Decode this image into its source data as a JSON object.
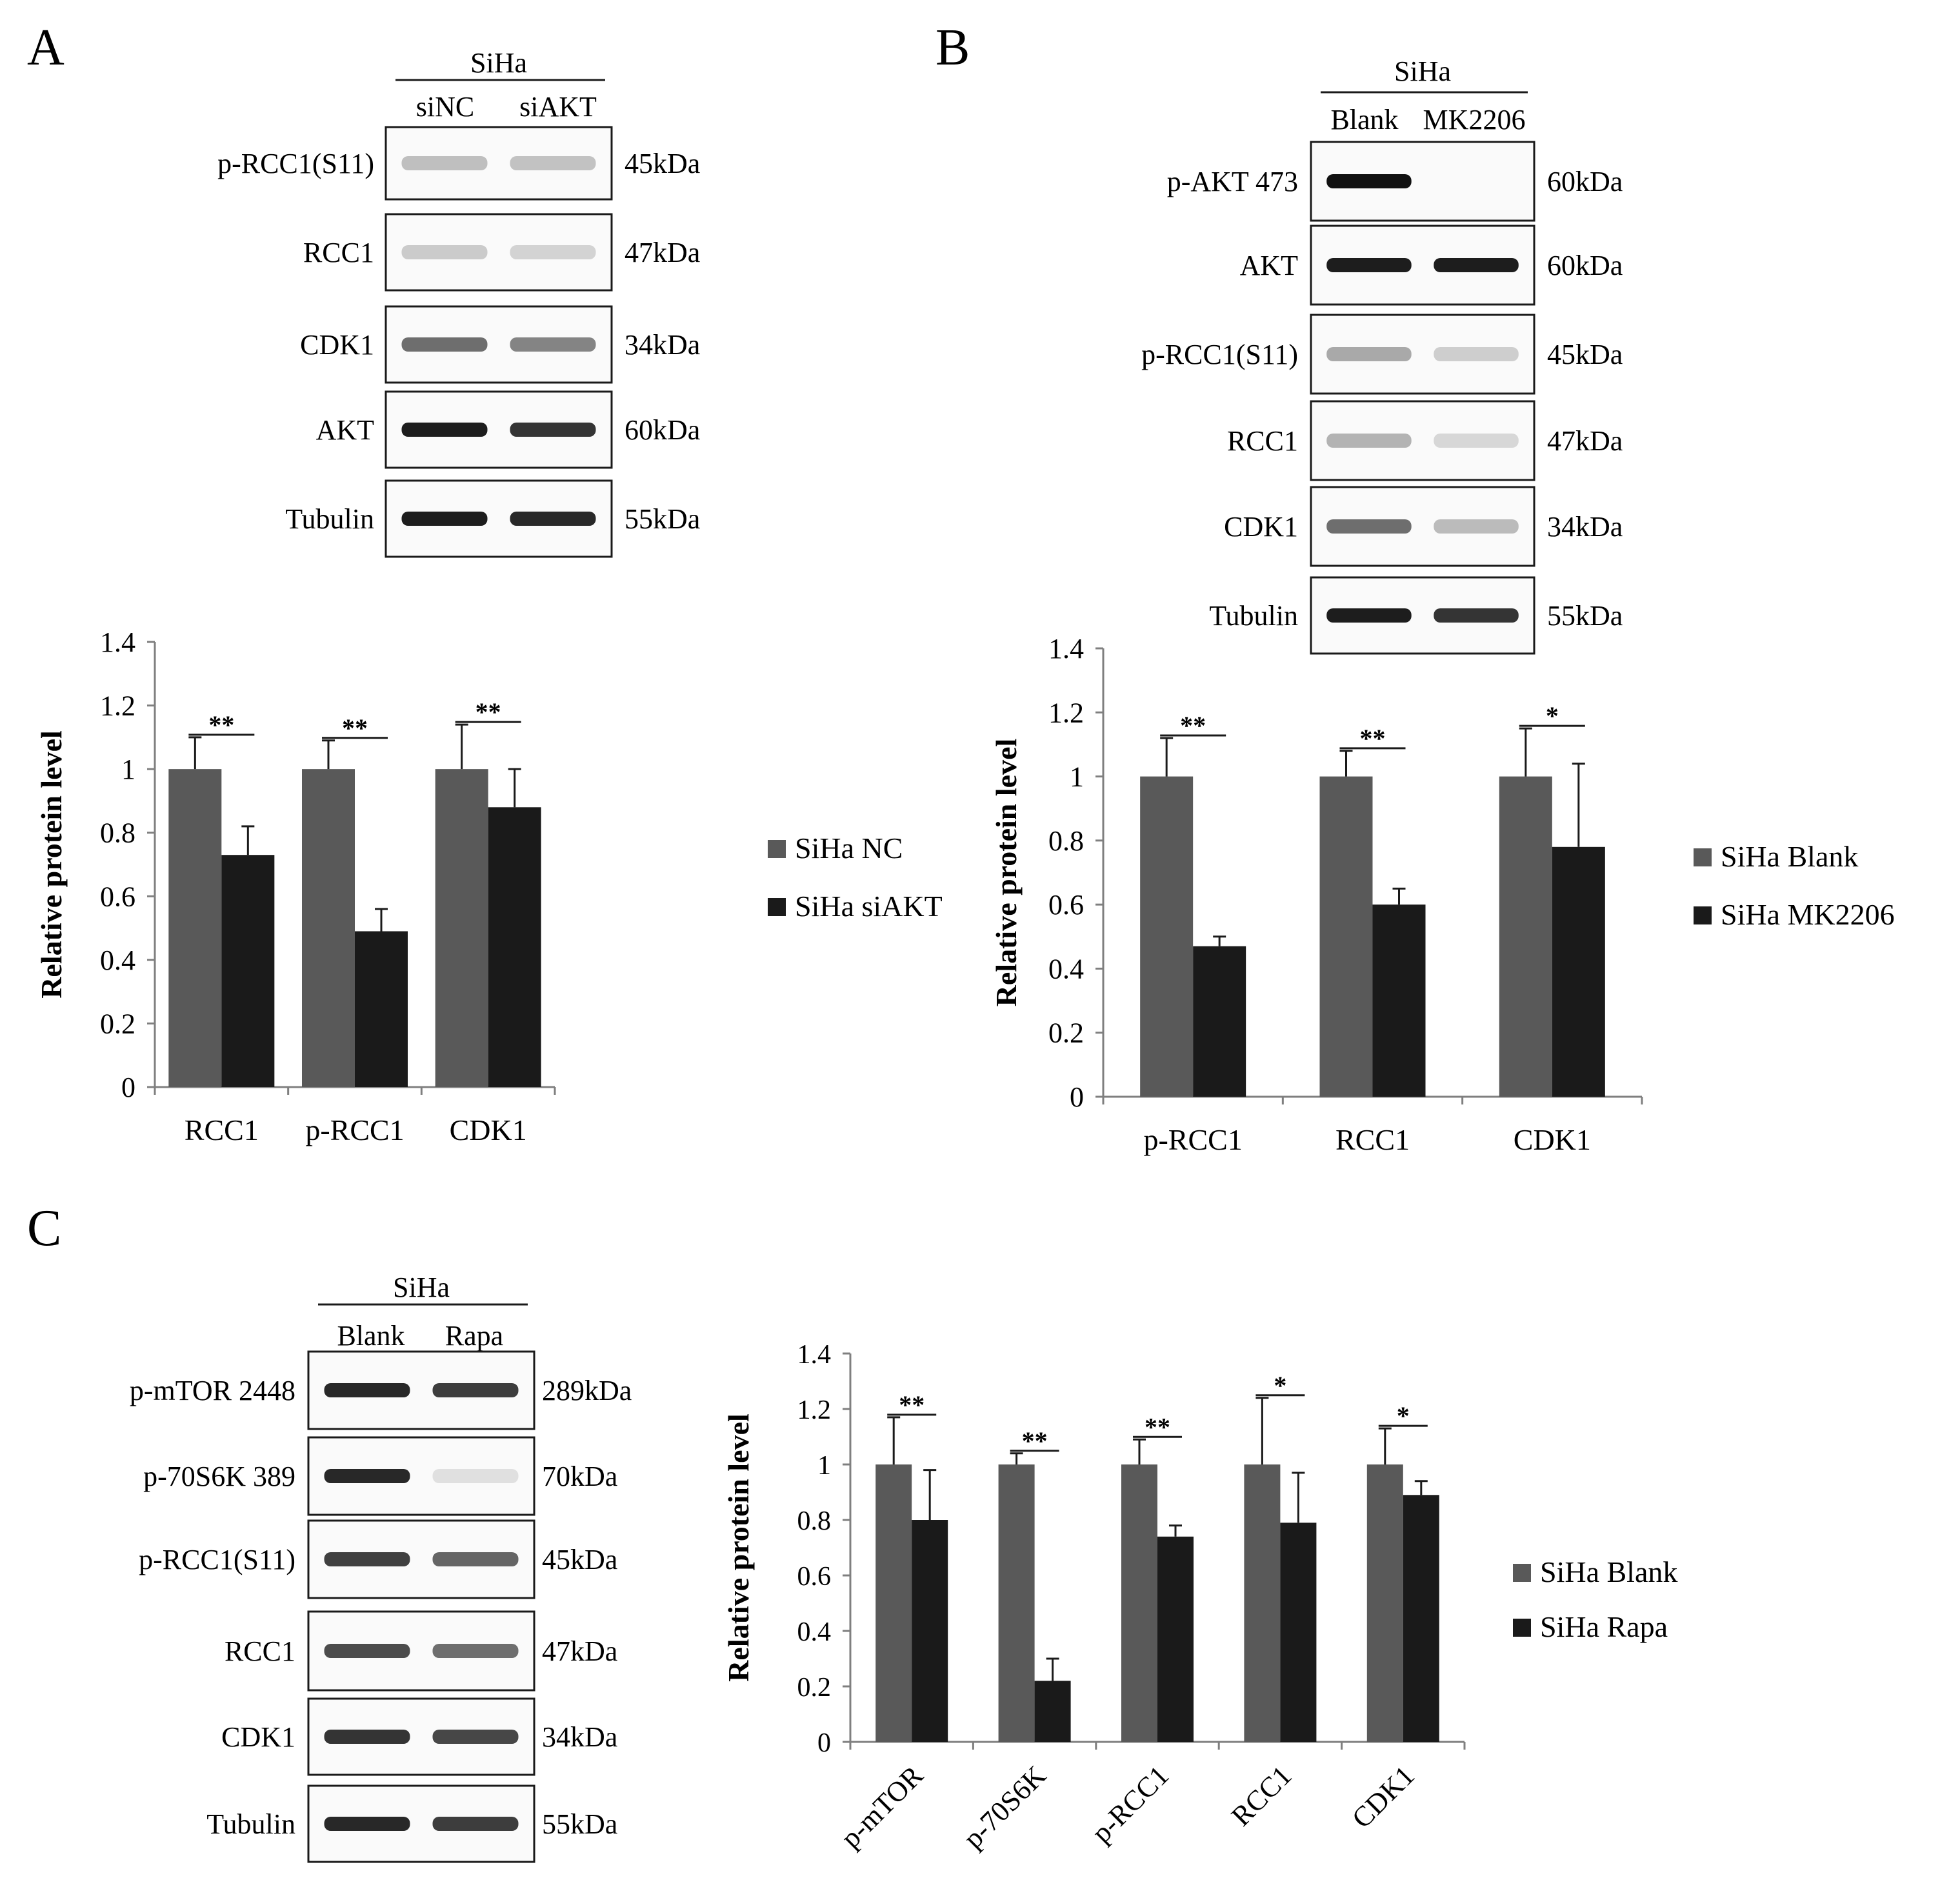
{
  "panels": {
    "A": {
      "letter": "A",
      "blot": {
        "cell_line": "SiHa",
        "lanes": [
          "siNC",
          "siAKT"
        ],
        "rows": [
          {
            "label": "p-RCC1(S11)",
            "kda": "45kDa"
          },
          {
            "label": "RCC1",
            "kda": "47kDa"
          },
          {
            "label": "CDK1",
            "kda": "34kDa"
          },
          {
            "label": "AKT",
            "kda": "60kDa"
          },
          {
            "label": "Tubulin",
            "kda": "55kDa"
          }
        ]
      }
    },
    "B": {
      "letter": "B",
      "blot": {
        "cell_line": "SiHa",
        "lanes": [
          "Blank",
          "MK2206"
        ],
        "rows": [
          {
            "label": "p-AKT  473",
            "kda": "60kDa"
          },
          {
            "label": "AKT",
            "kda": "60kDa"
          },
          {
            "label": "p-RCC1(S11)",
            "kda": "45kDa"
          },
          {
            "label": "RCC1",
            "kda": "47kDa"
          },
          {
            "label": "CDK1",
            "kda": "34kDa"
          },
          {
            "label": "Tubulin",
            "kda": "55kDa"
          }
        ]
      }
    },
    "C": {
      "letter": "C",
      "blot": {
        "cell_line": "SiHa",
        "lanes": [
          "Blank",
          "Rapa"
        ],
        "rows": [
          {
            "label": "p-mTOR 2448",
            "kda": "289kDa"
          },
          {
            "label": "p-70S6K 389",
            "kda": "70kDa"
          },
          {
            "label": "p-RCC1(S11)",
            "kda": "45kDa"
          },
          {
            "label": "RCC1",
            "kda": "47kDa"
          },
          {
            "label": "CDK1",
            "kda": "34kDa"
          },
          {
            "label": "Tubulin",
            "kda": "55kDa"
          }
        ]
      }
    }
  },
  "colors": {
    "control": "#595959",
    "treated": "#1a1a1a",
    "axis": "#7f7f7f"
  },
  "chart_data": [
    {
      "id": "A",
      "type": "bar",
      "ylabel": "Relative protein level",
      "ylim": [
        0,
        1.4
      ],
      "yticks": [
        "0",
        "0.2",
        "0.4",
        "0.6",
        "0.8",
        "1",
        "1.2",
        "1.4"
      ],
      "categories": [
        "RCC1",
        "p-RCC1",
        "CDK1"
      ],
      "series": [
        {
          "name": "SiHa NC",
          "values": [
            1.0,
            1.0,
            1.0
          ],
          "errors": [
            0.1,
            0.09,
            0.14
          ]
        },
        {
          "name": "SiHa siAKT",
          "values": [
            0.73,
            0.49,
            0.88
          ],
          "errors": [
            0.09,
            0.07,
            0.12
          ]
        }
      ],
      "significance": [
        "**",
        "**",
        "**"
      ],
      "legend": "right"
    },
    {
      "id": "B",
      "type": "bar",
      "ylabel": "Relative protein level",
      "ylim": [
        0,
        1.4
      ],
      "yticks": [
        "0",
        "0.2",
        "0.4",
        "0.6",
        "0.8",
        "1",
        "1.2",
        "1.4"
      ],
      "categories": [
        "p-RCC1",
        "RCC1",
        "CDK1"
      ],
      "series": [
        {
          "name": "SiHa Blank",
          "values": [
            1.0,
            1.0,
            1.0
          ],
          "errors": [
            0.12,
            0.08,
            0.15
          ]
        },
        {
          "name": "SiHa MK2206",
          "values": [
            0.47,
            0.6,
            0.78
          ],
          "errors": [
            0.03,
            0.05,
            0.26
          ]
        }
      ],
      "significance": [
        "**",
        "**",
        "*"
      ],
      "legend": "right"
    },
    {
      "id": "C",
      "type": "bar",
      "ylabel": "Relative protein level",
      "ylim": [
        0,
        1.4
      ],
      "yticks": [
        "0",
        "0.2",
        "0.4",
        "0.6",
        "0.8",
        "1",
        "1.2",
        "1.4"
      ],
      "categories": [
        "p-mTOR",
        "p-70S6K",
        "p-RCC1",
        "RCC1",
        "CDK1"
      ],
      "series": [
        {
          "name": "SiHa Blank",
          "values": [
            1.0,
            1.0,
            1.0,
            1.0,
            1.0
          ],
          "errors": [
            0.17,
            0.04,
            0.09,
            0.24,
            0.13
          ]
        },
        {
          "name": "SiHa Rapa",
          "values": [
            0.8,
            0.22,
            0.74,
            0.79,
            0.89
          ],
          "errors": [
            0.18,
            0.08,
            0.04,
            0.18,
            0.05
          ]
        }
      ],
      "significance": [
        "**",
        "**",
        "**",
        "*",
        "*"
      ],
      "legend": "right",
      "xtick_rotation": "-45deg"
    }
  ]
}
